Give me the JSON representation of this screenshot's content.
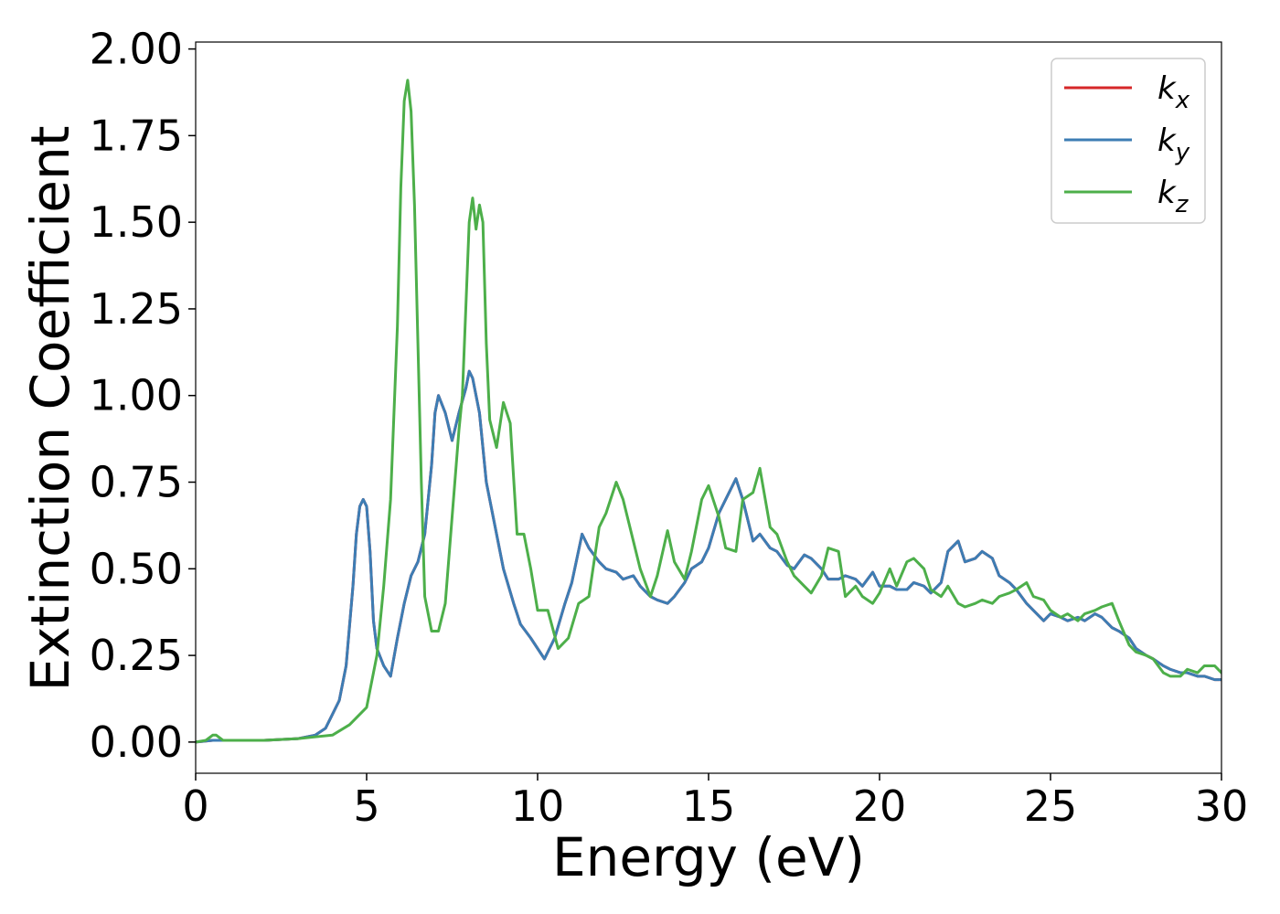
{
  "chart_data": {
    "type": "line",
    "title": "",
    "xlabel": "Energy (eV)",
    "ylabel": "Extinction Coefficient",
    "xlim": [
      0,
      30
    ],
    "ylim": [
      -0.09,
      2.02
    ],
    "xticks": [
      "0",
      "5",
      "10",
      "15",
      "20",
      "25",
      "30"
    ],
    "yticks": [
      "0.00",
      "0.25",
      "0.50",
      "0.75",
      "1.00",
      "1.25",
      "1.50",
      "1.75",
      "2.00"
    ],
    "grid": false,
    "legend": "top-right",
    "series": [
      {
        "name": "k_x",
        "label_main": "k",
        "label_sub": "x",
        "color": "#d62728",
        "x": [
          0,
          0.5,
          1,
          2,
          3,
          3.5,
          3.8,
          4.0,
          4.2,
          4.4,
          4.6,
          4.7,
          4.8,
          4.9,
          5.0,
          5.1,
          5.2,
          5.3,
          5.5,
          5.7,
          5.9,
          6.1,
          6.3,
          6.5,
          6.7,
          6.9,
          7.0,
          7.1,
          7.3,
          7.5,
          7.7,
          7.9,
          8.0,
          8.1,
          8.3,
          8.5,
          8.7,
          9.0,
          9.3,
          9.5,
          9.8,
          10.0,
          10.2,
          10.5,
          10.8,
          11.0,
          11.3,
          11.5,
          11.8,
          12.0,
          12.3,
          12.5,
          12.8,
          13.0,
          13.3,
          13.5,
          13.8,
          14.0,
          14.3,
          14.5,
          14.8,
          15.0,
          15.3,
          15.5,
          15.8,
          16.0,
          16.3,
          16.5,
          16.8,
          17.0,
          17.3,
          17.5,
          17.8,
          18.0,
          18.3,
          18.5,
          18.8,
          19.0,
          19.3,
          19.5,
          19.8,
          20.0,
          20.3,
          20.5,
          20.8,
          21.0,
          21.3,
          21.5,
          21.8,
          22.0,
          22.3,
          22.5,
          22.8,
          23.0,
          23.3,
          23.5,
          23.8,
          24.0,
          24.3,
          24.5,
          24.8,
          25.0,
          25.3,
          25.5,
          25.8,
          26.0,
          26.3,
          26.5,
          26.8,
          27.0,
          27.3,
          27.5,
          27.8,
          28.0,
          28.3,
          28.5,
          28.8,
          29.0,
          29.3,
          29.5,
          29.8,
          30.0
        ],
        "y": [
          0,
          0.005,
          0.005,
          0.005,
          0.01,
          0.02,
          0.04,
          0.08,
          0.12,
          0.22,
          0.45,
          0.6,
          0.68,
          0.7,
          0.68,
          0.55,
          0.35,
          0.27,
          0.22,
          0.19,
          0.3,
          0.4,
          0.48,
          0.52,
          0.6,
          0.8,
          0.95,
          1.0,
          0.95,
          0.87,
          0.95,
          1.02,
          1.07,
          1.05,
          0.95,
          0.75,
          0.65,
          0.5,
          0.4,
          0.34,
          0.3,
          0.27,
          0.24,
          0.3,
          0.4,
          0.46,
          0.6,
          0.56,
          0.52,
          0.5,
          0.49,
          0.47,
          0.48,
          0.45,
          0.42,
          0.41,
          0.4,
          0.42,
          0.46,
          0.5,
          0.52,
          0.56,
          0.66,
          0.7,
          0.76,
          0.7,
          0.58,
          0.6,
          0.56,
          0.55,
          0.51,
          0.5,
          0.54,
          0.53,
          0.5,
          0.47,
          0.47,
          0.48,
          0.47,
          0.45,
          0.49,
          0.45,
          0.45,
          0.44,
          0.44,
          0.46,
          0.45,
          0.43,
          0.46,
          0.55,
          0.58,
          0.52,
          0.53,
          0.55,
          0.53,
          0.48,
          0.46,
          0.44,
          0.4,
          0.38,
          0.35,
          0.37,
          0.36,
          0.35,
          0.36,
          0.35,
          0.37,
          0.36,
          0.33,
          0.32,
          0.3,
          0.27,
          0.25,
          0.24,
          0.22,
          0.21,
          0.2,
          0.2,
          0.19,
          0.19,
          0.18,
          0.18
        ]
      },
      {
        "name": "k_y",
        "label_main": "k",
        "label_sub": "y",
        "color": "#3d7db4",
        "x": [
          0,
          0.5,
          1,
          2,
          3,
          3.5,
          3.8,
          4.0,
          4.2,
          4.4,
          4.6,
          4.7,
          4.8,
          4.9,
          5.0,
          5.1,
          5.2,
          5.3,
          5.5,
          5.7,
          5.9,
          6.1,
          6.3,
          6.5,
          6.7,
          6.9,
          7.0,
          7.1,
          7.3,
          7.5,
          7.7,
          7.9,
          8.0,
          8.1,
          8.3,
          8.5,
          8.7,
          9.0,
          9.3,
          9.5,
          9.8,
          10.0,
          10.2,
          10.5,
          10.8,
          11.0,
          11.3,
          11.5,
          11.8,
          12.0,
          12.3,
          12.5,
          12.8,
          13.0,
          13.3,
          13.5,
          13.8,
          14.0,
          14.3,
          14.5,
          14.8,
          15.0,
          15.3,
          15.5,
          15.8,
          16.0,
          16.3,
          16.5,
          16.8,
          17.0,
          17.3,
          17.5,
          17.8,
          18.0,
          18.3,
          18.5,
          18.8,
          19.0,
          19.3,
          19.5,
          19.8,
          20.0,
          20.3,
          20.5,
          20.8,
          21.0,
          21.3,
          21.5,
          21.8,
          22.0,
          22.3,
          22.5,
          22.8,
          23.0,
          23.3,
          23.5,
          23.8,
          24.0,
          24.3,
          24.5,
          24.8,
          25.0,
          25.3,
          25.5,
          25.8,
          26.0,
          26.3,
          26.5,
          26.8,
          27.0,
          27.3,
          27.5,
          27.8,
          28.0,
          28.3,
          28.5,
          28.8,
          29.0,
          29.3,
          29.5,
          29.8,
          30.0
        ],
        "y": [
          0,
          0.005,
          0.005,
          0.005,
          0.01,
          0.02,
          0.04,
          0.08,
          0.12,
          0.22,
          0.45,
          0.6,
          0.68,
          0.7,
          0.68,
          0.55,
          0.35,
          0.27,
          0.22,
          0.19,
          0.3,
          0.4,
          0.48,
          0.52,
          0.6,
          0.8,
          0.95,
          1.0,
          0.95,
          0.87,
          0.95,
          1.02,
          1.07,
          1.05,
          0.95,
          0.75,
          0.65,
          0.5,
          0.4,
          0.34,
          0.3,
          0.27,
          0.24,
          0.3,
          0.4,
          0.46,
          0.6,
          0.56,
          0.52,
          0.5,
          0.49,
          0.47,
          0.48,
          0.45,
          0.42,
          0.41,
          0.4,
          0.42,
          0.46,
          0.5,
          0.52,
          0.56,
          0.66,
          0.7,
          0.76,
          0.7,
          0.58,
          0.6,
          0.56,
          0.55,
          0.51,
          0.5,
          0.54,
          0.53,
          0.5,
          0.47,
          0.47,
          0.48,
          0.47,
          0.45,
          0.49,
          0.45,
          0.45,
          0.44,
          0.44,
          0.46,
          0.45,
          0.43,
          0.46,
          0.55,
          0.58,
          0.52,
          0.53,
          0.55,
          0.53,
          0.48,
          0.46,
          0.44,
          0.4,
          0.38,
          0.35,
          0.37,
          0.36,
          0.35,
          0.36,
          0.35,
          0.37,
          0.36,
          0.33,
          0.32,
          0.3,
          0.27,
          0.25,
          0.24,
          0.22,
          0.21,
          0.2,
          0.2,
          0.19,
          0.19,
          0.18,
          0.18
        ]
      },
      {
        "name": "k_z",
        "label_main": "k",
        "label_sub": "z",
        "color": "#4daf4a",
        "x": [
          0,
          0.3,
          0.5,
          0.6,
          0.8,
          1,
          2,
          3,
          3.5,
          4.0,
          4.5,
          5.0,
          5.3,
          5.5,
          5.7,
          5.9,
          6.0,
          6.1,
          6.2,
          6.3,
          6.4,
          6.5,
          6.6,
          6.7,
          6.9,
          7.1,
          7.3,
          7.5,
          7.7,
          7.8,
          7.9,
          8.0,
          8.1,
          8.2,
          8.3,
          8.4,
          8.5,
          8.6,
          8.8,
          9.0,
          9.2,
          9.4,
          9.6,
          9.8,
          10.0,
          10.3,
          10.6,
          10.9,
          11.2,
          11.5,
          11.8,
          12.0,
          12.3,
          12.5,
          12.8,
          13.0,
          13.3,
          13.5,
          13.8,
          14.0,
          14.3,
          14.5,
          14.8,
          15.0,
          15.3,
          15.5,
          15.8,
          16.0,
          16.3,
          16.5,
          16.8,
          17.0,
          17.3,
          17.5,
          17.8,
          18.0,
          18.3,
          18.5,
          18.8,
          19.0,
          19.3,
          19.5,
          19.8,
          20.0,
          20.3,
          20.5,
          20.8,
          21.0,
          21.3,
          21.5,
          21.8,
          22.0,
          22.3,
          22.5,
          22.8,
          23.0,
          23.3,
          23.5,
          23.8,
          24.0,
          24.3,
          24.5,
          24.8,
          25.0,
          25.3,
          25.5,
          25.8,
          26.0,
          26.3,
          26.5,
          26.8,
          27.0,
          27.3,
          27.5,
          27.8,
          28.0,
          28.3,
          28.5,
          28.8,
          29.0,
          29.3,
          29.5,
          29.8,
          30.0
        ],
        "y": [
          0,
          0.005,
          0.02,
          0.02,
          0.005,
          0.005,
          0.005,
          0.01,
          0.015,
          0.02,
          0.05,
          0.1,
          0.25,
          0.45,
          0.7,
          1.2,
          1.6,
          1.85,
          1.91,
          1.82,
          1.55,
          1.15,
          0.75,
          0.42,
          0.32,
          0.32,
          0.4,
          0.65,
          0.9,
          1.0,
          1.25,
          1.5,
          1.57,
          1.48,
          1.55,
          1.5,
          1.15,
          0.93,
          0.85,
          0.98,
          0.92,
          0.6,
          0.6,
          0.5,
          0.38,
          0.38,
          0.27,
          0.3,
          0.4,
          0.42,
          0.62,
          0.66,
          0.75,
          0.7,
          0.58,
          0.5,
          0.42,
          0.48,
          0.61,
          0.52,
          0.47,
          0.55,
          0.7,
          0.74,
          0.65,
          0.56,
          0.55,
          0.7,
          0.72,
          0.79,
          0.62,
          0.6,
          0.52,
          0.48,
          0.45,
          0.43,
          0.48,
          0.56,
          0.55,
          0.42,
          0.45,
          0.42,
          0.4,
          0.43,
          0.5,
          0.45,
          0.52,
          0.53,
          0.5,
          0.44,
          0.42,
          0.45,
          0.4,
          0.39,
          0.4,
          0.41,
          0.4,
          0.42,
          0.43,
          0.44,
          0.46,
          0.42,
          0.41,
          0.38,
          0.36,
          0.37,
          0.35,
          0.37,
          0.38,
          0.39,
          0.4,
          0.35,
          0.28,
          0.26,
          0.25,
          0.24,
          0.2,
          0.19,
          0.19,
          0.21,
          0.2,
          0.22,
          0.22,
          0.2
        ]
      }
    ]
  }
}
